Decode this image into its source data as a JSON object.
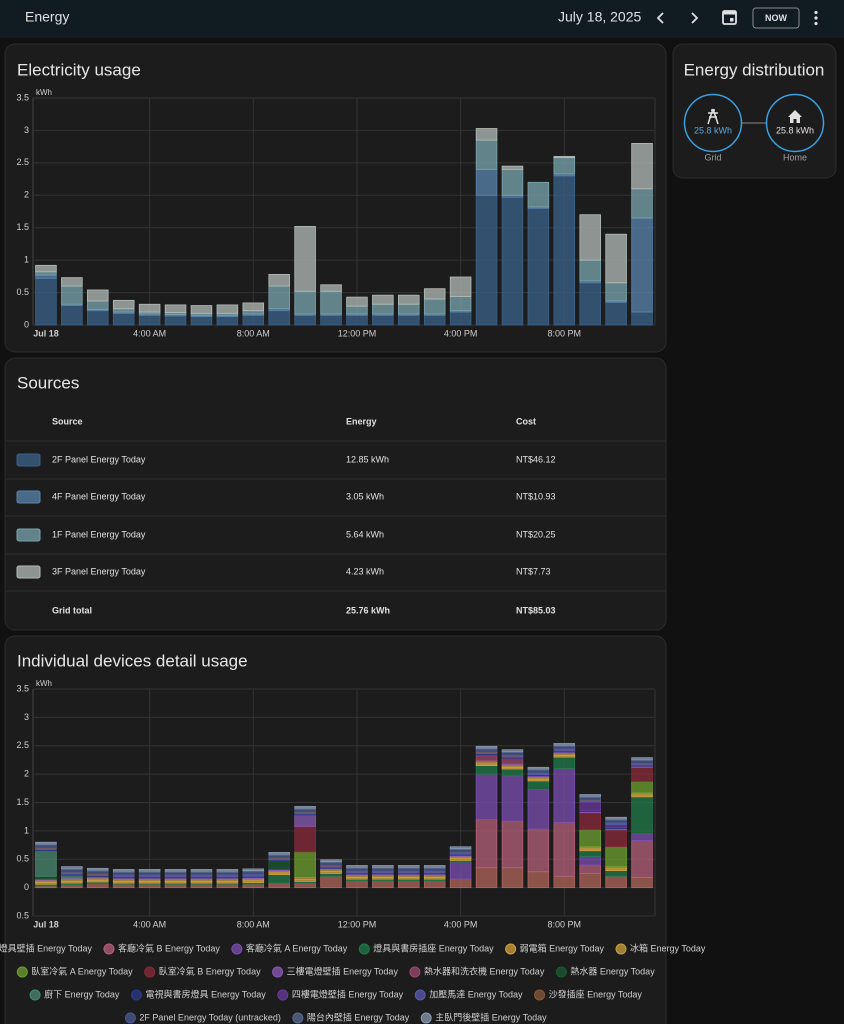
{
  "header": {
    "title": "Energy",
    "date": "July 18, 2025",
    "now": "NOW"
  },
  "chart_data": [
    {
      "type": "bar",
      "stacked": true,
      "title": "Electricity usage",
      "y_label": "kWh",
      "categories": [
        "Jul 18",
        null,
        null,
        null,
        "4:00 AM",
        null,
        null,
        null,
        "8:00 AM",
        null,
        null,
        null,
        "12:00 PM",
        null,
        null,
        null,
        "4:00 PM",
        null,
        null,
        null,
        "8:00 PM",
        null,
        null,
        null
      ],
      "ylim": [
        0,
        3.5
      ],
      "yticks": [
        0,
        0.5,
        1,
        1.5,
        2,
        2.5,
        3,
        3.5
      ],
      "grid": true,
      "series": [
        {
          "name": "2F Panel Energy Today",
          "color": "#3b6289",
          "values": [
            0.72,
            0.3,
            0.22,
            0.18,
            0.15,
            0.14,
            0.13,
            0.13,
            0.15,
            0.22,
            0.15,
            0.15,
            0.15,
            0.15,
            0.15,
            0.15,
            0.2,
            2.0,
            1.97,
            1.8,
            2.3,
            0.65,
            0.35,
            0.2
          ]
        },
        {
          "name": "4F Panel Energy Today",
          "color": "#5a84ad",
          "values": [
            0.05,
            0.02,
            0.02,
            0.02,
            0.02,
            0.02,
            0.02,
            0.02,
            0.02,
            0.03,
            0.02,
            0.02,
            0.02,
            0.02,
            0.02,
            0.02,
            0.02,
            0.4,
            0.03,
            0.02,
            0.03,
            0.03,
            0.02,
            1.45
          ]
        },
        {
          "name": "1F Panel Energy Today",
          "color": "#7aa5ad",
          "values": [
            0.05,
            0.28,
            0.13,
            0.05,
            0.03,
            0.03,
            0.03,
            0.03,
            0.05,
            0.35,
            0.35,
            0.35,
            0.12,
            0.15,
            0.15,
            0.23,
            0.22,
            0.45,
            0.4,
            0.38,
            0.25,
            0.32,
            0.28,
            0.45
          ]
        },
        {
          "name": "3F Panel Energy Today",
          "color": "#b4bcb8",
          "values": [
            0.1,
            0.13,
            0.17,
            0.13,
            0.12,
            0.12,
            0.12,
            0.13,
            0.12,
            0.18,
            1.0,
            0.1,
            0.14,
            0.14,
            0.14,
            0.16,
            0.3,
            0.18,
            0.05,
            0.0,
            0.02,
            0.7,
            0.75,
            0.7
          ]
        }
      ]
    },
    {
      "type": "bar",
      "stacked": true,
      "title": "Individual devices detail usage",
      "y_label": "kWh",
      "categories": [
        "Jul 18",
        null,
        null,
        null,
        "4:00 AM",
        null,
        null,
        null,
        "8:00 AM",
        null,
        null,
        null,
        "12:00 PM",
        null,
        null,
        null,
        "4:00 PM",
        null,
        null,
        null,
        "8:00 PM",
        null,
        null,
        null
      ],
      "ylim": [
        -0.5,
        3.5
      ],
      "yticks": [
        {
          "value": -0.5,
          "label": "0.5"
        },
        0,
        0.5,
        1,
        1.5,
        2,
        2.5,
        3,
        3.5
      ],
      "grid": true,
      "series": [
        {
          "name": "車庫燈具壁插 Energy Today",
          "color": "#b0665a",
          "values": [
            0.03,
            0.05,
            0.07,
            0.06,
            0.06,
            0.06,
            0.06,
            0.06,
            0.06,
            0.08,
            0.08,
            0.2,
            0.12,
            0.12,
            0.12,
            0.12,
            0.15,
            0.35,
            0.35,
            0.28,
            0.2,
            0.25,
            0.2,
            0.18
          ]
        },
        {
          "name": "客廳冷氣 B Energy Today",
          "color": "#b5607a",
          "values": [
            0,
            0,
            0,
            0,
            0,
            0,
            0,
            0,
            0,
            0,
            0,
            0,
            0,
            0,
            0,
            0,
            0,
            0.85,
            0.82,
            0.75,
            0.95,
            0.15,
            0,
            0.65
          ]
        },
        {
          "name": "客廳冷氣 A Energy Today",
          "color": "#7b4fb0",
          "values": [
            0,
            0,
            0,
            0,
            0,
            0,
            0,
            0,
            0,
            0,
            0,
            0,
            0,
            0,
            0,
            0,
            0.3,
            0.8,
            0.8,
            0.7,
            0.95,
            0.15,
            0,
            0.12
          ]
        },
        {
          "name": "燈具與書房插座 Energy Today",
          "color": "#1f7a4a",
          "values": [
            0.03,
            0.03,
            0.03,
            0.02,
            0.02,
            0.02,
            0.02,
            0.02,
            0.03,
            0.15,
            0.03,
            0.05,
            0.03,
            0.03,
            0.03,
            0.03,
            0.03,
            0.15,
            0.12,
            0.15,
            0.2,
            0.1,
            0.1,
            0.65
          ]
        },
        {
          "name": "弱電箱 Energy Today",
          "color": "#d4a040",
          "values": [
            0.03,
            0.03,
            0.03,
            0.03,
            0.03,
            0.03,
            0.03,
            0.03,
            0.03,
            0.03,
            0.03,
            0.03,
            0.03,
            0.03,
            0.03,
            0.03,
            0.03,
            0.03,
            0.03,
            0.03,
            0.03,
            0.03,
            0.03,
            0.03
          ]
        },
        {
          "name": "冰箱 Energy Today",
          "color": "#c9a040",
          "values": [
            0.04,
            0.04,
            0.04,
            0.04,
            0.04,
            0.04,
            0.04,
            0.04,
            0.04,
            0.04,
            0.04,
            0.04,
            0.04,
            0.04,
            0.04,
            0.04,
            0.04,
            0.04,
            0.04,
            0.04,
            0.04,
            0.04,
            0.04,
            0.04
          ]
        },
        {
          "name": "臥室冷氣 A Energy Today",
          "color": "#6fa030",
          "values": [
            0,
            0,
            0,
            0,
            0,
            0,
            0,
            0,
            0,
            0,
            0.45,
            0,
            0,
            0,
            0,
            0,
            0,
            0,
            0,
            0,
            0,
            0.3,
            0.35,
            0.2
          ]
        },
        {
          "name": "臥室冷氣 B Energy Today",
          "color": "#8a2a3a",
          "values": [
            0,
            0,
            0,
            0,
            0,
            0,
            0,
            0,
            0,
            0,
            0.45,
            0,
            0,
            0,
            0,
            0,
            0,
            0,
            0,
            0,
            0,
            0.3,
            0.3,
            0.25
          ]
        },
        {
          "name": "三樓電燈壁插 Energy Today",
          "color": "#8a5ab5",
          "values": [
            0.02,
            0.02,
            0.02,
            0.02,
            0.02,
            0.02,
            0.02,
            0.02,
            0.02,
            0.02,
            0.2,
            0.02,
            0.02,
            0.02,
            0.02,
            0.02,
            0.02,
            0.02,
            0.02,
            0.02,
            0.02,
            0.02,
            0.02,
            0.02
          ]
        },
        {
          "name": "熱水器和洗衣機 Energy Today",
          "color": "#9a4a70",
          "values": [
            0,
            0,
            0,
            0,
            0,
            0,
            0,
            0,
            0,
            0,
            0,
            0,
            0,
            0,
            0,
            0,
            0,
            0.1,
            0.1,
            0,
            0,
            0,
            0,
            0
          ]
        },
        {
          "name": "熱水器 Energy Today",
          "color": "#1a5a30",
          "values": [
            0.05,
            0,
            0,
            0,
            0,
            0,
            0,
            0,
            0,
            0.15,
            0,
            0,
            0,
            0,
            0,
            0,
            0,
            0,
            0,
            0,
            0,
            0,
            0,
            0
          ]
        },
        {
          "name": "廚下 Energy Today",
          "color": "#4a8a70",
          "values": [
            0.45,
            0.05,
            0,
            0,
            0,
            0,
            0,
            0,
            0,
            0,
            0,
            0,
            0,
            0,
            0,
            0,
            0,
            0,
            0,
            0,
            0,
            0,
            0,
            0
          ]
        },
        {
          "name": "電視與書房燈具 Energy Today",
          "color": "#2a3a8a",
          "values": [
            0.02,
            0.02,
            0.02,
            0.02,
            0.02,
            0.02,
            0.02,
            0.02,
            0.02,
            0.02,
            0.02,
            0.02,
            0.02,
            0.02,
            0.02,
            0.02,
            0.02,
            0.02,
            0.02,
            0.02,
            0.02,
            0.02,
            0.02,
            0.02
          ]
        },
        {
          "name": "四樓電燈壁插 Energy Today",
          "color": "#6a3a9a",
          "values": [
            0,
            0,
            0,
            0,
            0,
            0,
            0,
            0,
            0,
            0,
            0,
            0,
            0,
            0,
            0,
            0,
            0,
            0,
            0,
            0,
            0,
            0.15,
            0.05,
            0
          ]
        },
        {
          "name": "加壓馬達 Energy Today",
          "color": "#5a5ab0",
          "values": [
            0.02,
            0.02,
            0.02,
            0.02,
            0.02,
            0.02,
            0.02,
            0.02,
            0.02,
            0.02,
            0.02,
            0.02,
            0.02,
            0.02,
            0.02,
            0.02,
            0.02,
            0.02,
            0.02,
            0.02,
            0.02,
            0.02,
            0.02,
            0.02
          ]
        },
        {
          "name": "沙發插座 Energy Today",
          "color": "#8a5a3a",
          "values": [
            0.01,
            0.01,
            0.01,
            0.01,
            0.01,
            0.01,
            0.01,
            0.01,
            0.01,
            0.01,
            0.01,
            0.01,
            0.01,
            0.01,
            0.01,
            0.01,
            0.01,
            0.01,
            0.01,
            0.01,
            0.01,
            0.01,
            0.01,
            0.01
          ]
        },
        {
          "name": "2F Panel Energy Today (untracked)",
          "color": "#4a5a90",
          "values": [
            0.05,
            0.05,
            0.05,
            0.05,
            0.05,
            0.05,
            0.05,
            0.05,
            0.05,
            0.05,
            0.05,
            0.05,
            0.05,
            0.05,
            0.05,
            0.05,
            0.05,
            0.05,
            0.05,
            0.05,
            0.05,
            0.05,
            0.05,
            0.05
          ]
        },
        {
          "name": "陽台內壁插 Energy Today",
          "color": "#5a6a90",
          "values": [
            0.02,
            0.02,
            0.02,
            0.02,
            0.02,
            0.02,
            0.02,
            0.02,
            0.02,
            0.02,
            0.02,
            0.02,
            0.02,
            0.02,
            0.02,
            0.02,
            0.02,
            0.02,
            0.02,
            0.02,
            0.02,
            0.02,
            0.02,
            0.02
          ]
        },
        {
          "name": "主臥門後壁插 Energy Today",
          "color": "#8a9ab0",
          "values": [
            0.03,
            0.03,
            0.03,
            0.03,
            0.03,
            0.03,
            0.03,
            0.03,
            0.03,
            0.03,
            0.03,
            0.03,
            0.03,
            0.03,
            0.03,
            0.03,
            0.03,
            0.03,
            0.03,
            0.03,
            0.03,
            0.03,
            0.03,
            0.03
          ]
        }
      ]
    }
  ],
  "distribution": {
    "title": "Energy distribution",
    "grid_label": "Grid",
    "grid_value": "25.8 kWh",
    "home_label": "Home",
    "home_value": "25.8 kWh"
  },
  "sources": {
    "title": "Sources",
    "headers": [
      "Source",
      "Energy",
      "Cost"
    ],
    "rows": [
      {
        "energy": "12.85 kWh",
        "cost": "NT$46.12"
      },
      {
        "energy": "3.05 kWh",
        "cost": "NT$10.93"
      },
      {
        "energy": "5.64 kWh",
        "cost": "NT$20.25"
      },
      {
        "energy": "4.23 kWh",
        "cost": "NT$7.73"
      }
    ],
    "total": {
      "label": "Grid total",
      "energy": "25.76 kWh",
      "cost": "NT$85.03"
    }
  }
}
